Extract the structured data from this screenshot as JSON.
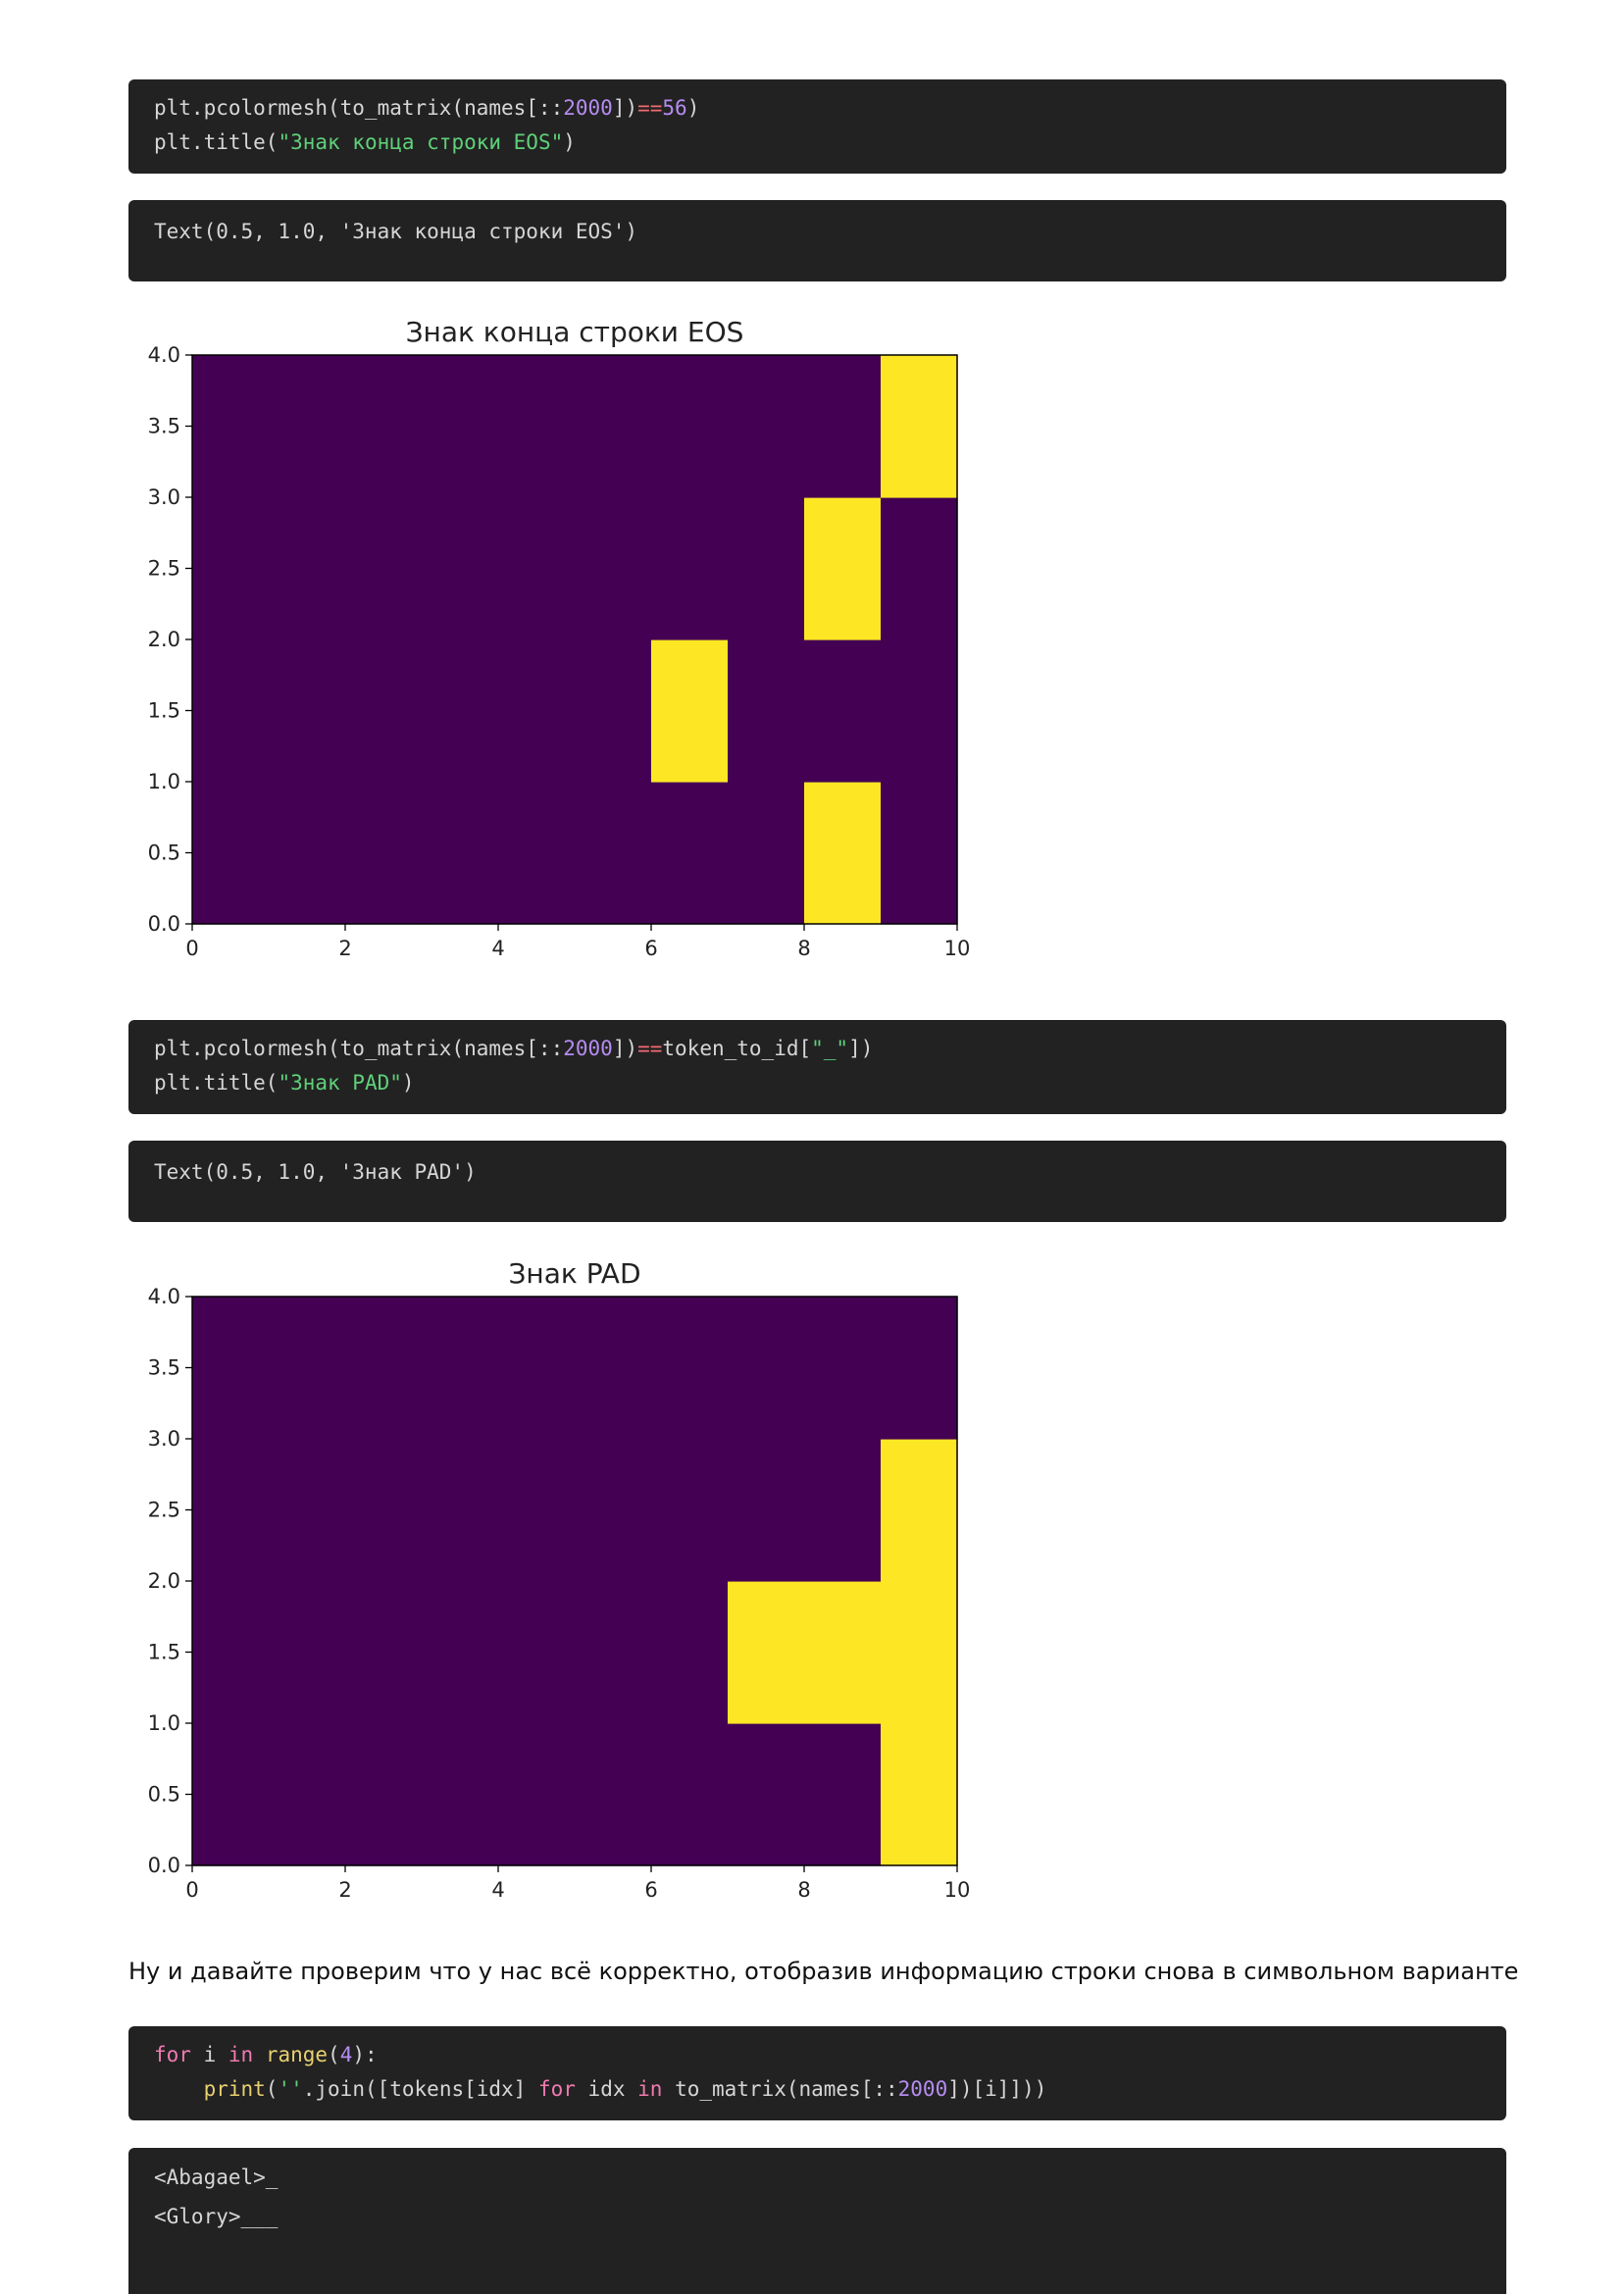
{
  "cells": [
    {
      "code": [
        [
          {
            "t": "plt.pcolormesh(to_matrix(names[::",
            "c": "c-text"
          },
          {
            "t": "2000",
            "c": "c-num"
          },
          {
            "t": "])",
            "c": "c-text"
          },
          {
            "t": "==",
            "c": "c-op"
          },
          {
            "t": "56",
            "c": "c-num"
          },
          {
            "t": ")",
            "c": "c-text"
          }
        ],
        [
          {
            "t": "plt.title(",
            "c": "c-text"
          },
          {
            "t": "\"Знак конца строки EOS\"",
            "c": "c-str"
          },
          {
            "t": ")",
            "c": "c-text"
          }
        ]
      ],
      "output": "Text(0.5, 1.0, 'Знак конца строки EOS')"
    },
    {
      "code": [
        [
          {
            "t": "plt.pcolormesh(to_matrix(names[::",
            "c": "c-text"
          },
          {
            "t": "2000",
            "c": "c-num"
          },
          {
            "t": "])",
            "c": "c-text"
          },
          {
            "t": "==",
            "c": "c-op"
          },
          {
            "t": "token_to_id[",
            "c": "c-text"
          },
          {
            "t": "\"_\"",
            "c": "c-str"
          },
          {
            "t": "])",
            "c": "c-text"
          }
        ],
        [
          {
            "t": "plt.title(",
            "c": "c-text"
          },
          {
            "t": "\"Знак PAD\"",
            "c": "c-str"
          },
          {
            "t": ")",
            "c": "c-text"
          }
        ]
      ],
      "output": "Text(0.5, 1.0, 'Знак PAD')"
    },
    {
      "code": [
        [
          {
            "t": "for",
            "c": "c-kw"
          },
          {
            "t": " i ",
            "c": "c-text"
          },
          {
            "t": "in",
            "c": "c-kw"
          },
          {
            "t": " ",
            "c": "c-text"
          },
          {
            "t": "range",
            "c": "c-fn"
          },
          {
            "t": "(",
            "c": "c-text"
          },
          {
            "t": "4",
            "c": "c-num"
          },
          {
            "t": "):",
            "c": "c-text"
          }
        ],
        [
          {
            "t": "    ",
            "c": "c-text"
          },
          {
            "t": "print",
            "c": "c-fn"
          },
          {
            "t": "(",
            "c": "c-text"
          },
          {
            "t": "''",
            "c": "c-str"
          },
          {
            "t": ".join([tokens[idx] ",
            "c": "c-text"
          },
          {
            "t": "for",
            "c": "c-kw"
          },
          {
            "t": " idx ",
            "c": "c-text"
          },
          {
            "t": "in",
            "c": "c-kw"
          },
          {
            "t": " to_matrix(names[::",
            "c": "c-text"
          },
          {
            "t": "2000",
            "c": "c-num"
          },
          {
            "t": "])[i]]))",
            "c": "c-text"
          }
        ]
      ],
      "output_lines": [
        "<Abagael>_",
        "<Glory>___"
      ]
    }
  ],
  "prose": "Ну и давайте проверим что у нас всё корректно, отобразив информацию строки снова в символьном варианте",
  "colors": {
    "low": "#440154",
    "high": "#fde725"
  },
  "chart_data": [
    {
      "type": "heatmap",
      "title": "Знак конца строки EOS",
      "xlim": [
        0,
        10
      ],
      "ylim": [
        0,
        4
      ],
      "xticks": [
        "0",
        "2",
        "4",
        "6",
        "8",
        "10"
      ],
      "yticks": [
        "0.0",
        "0.5",
        "1.0",
        "1.5",
        "2.0",
        "2.5",
        "3.0",
        "3.5",
        "4.0"
      ],
      "matrix": [
        [
          0,
          0,
          0,
          0,
          0,
          0,
          0,
          0,
          1,
          0
        ],
        [
          0,
          0,
          0,
          0,
          0,
          0,
          1,
          0,
          0,
          0
        ],
        [
          0,
          0,
          0,
          0,
          0,
          0,
          0,
          0,
          1,
          0
        ],
        [
          0,
          0,
          0,
          0,
          0,
          0,
          0,
          0,
          0,
          1
        ]
      ]
    },
    {
      "type": "heatmap",
      "title": "Знак PAD",
      "xlim": [
        0,
        10
      ],
      "ylim": [
        0,
        4
      ],
      "xticks": [
        "0",
        "2",
        "4",
        "6",
        "8",
        "10"
      ],
      "yticks": [
        "0.0",
        "0.5",
        "1.0",
        "1.5",
        "2.0",
        "2.5",
        "3.0",
        "3.5",
        "4.0"
      ],
      "matrix": [
        [
          0,
          0,
          0,
          0,
          0,
          0,
          0,
          0,
          0,
          1
        ],
        [
          0,
          0,
          0,
          0,
          0,
          0,
          0,
          1,
          1,
          1
        ],
        [
          0,
          0,
          0,
          0,
          0,
          0,
          0,
          0,
          0,
          1
        ],
        [
          0,
          0,
          0,
          0,
          0,
          0,
          0,
          0,
          0,
          0
        ]
      ]
    }
  ]
}
